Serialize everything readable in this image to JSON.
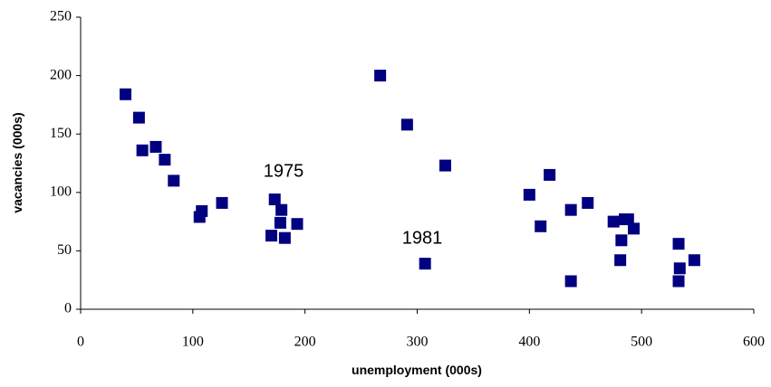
{
  "chart_data": {
    "type": "scatter",
    "x_label": "unemployment (000s)",
    "y_label": "vacancies (000s)",
    "annotations": [
      "1975",
      "1981"
    ],
    "color": "#000080",
    "xlim": [
      0,
      600
    ],
    "xticks": [
      0,
      100,
      200,
      300,
      400,
      500,
      600
    ],
    "ylim": [
      0,
      250
    ],
    "yticks": [
      0,
      50,
      100,
      150,
      200,
      250
    ],
    "series": [
      {
        "color": "#000080",
        "x": [
          40,
          52,
          55,
          67,
          75,
          83,
          106,
          108,
          126,
          173,
          179,
          178,
          170,
          182,
          193,
          267,
          291,
          307,
          325,
          400,
          410,
          418,
          437,
          437,
          452,
          475,
          488,
          482,
          481,
          493,
          533,
          534,
          533,
          547,
          485
        ],
        "values": [
          184,
          164,
          136,
          139,
          128,
          110,
          79,
          84,
          91,
          94,
          85,
          74,
          63,
          61,
          73,
          200,
          158,
          39,
          123,
          98,
          71,
          115,
          85,
          24,
          91,
          75,
          77,
          59,
          42,
          69,
          56,
          35,
          24,
          42,
          77
        ]
      }
    ]
  }
}
